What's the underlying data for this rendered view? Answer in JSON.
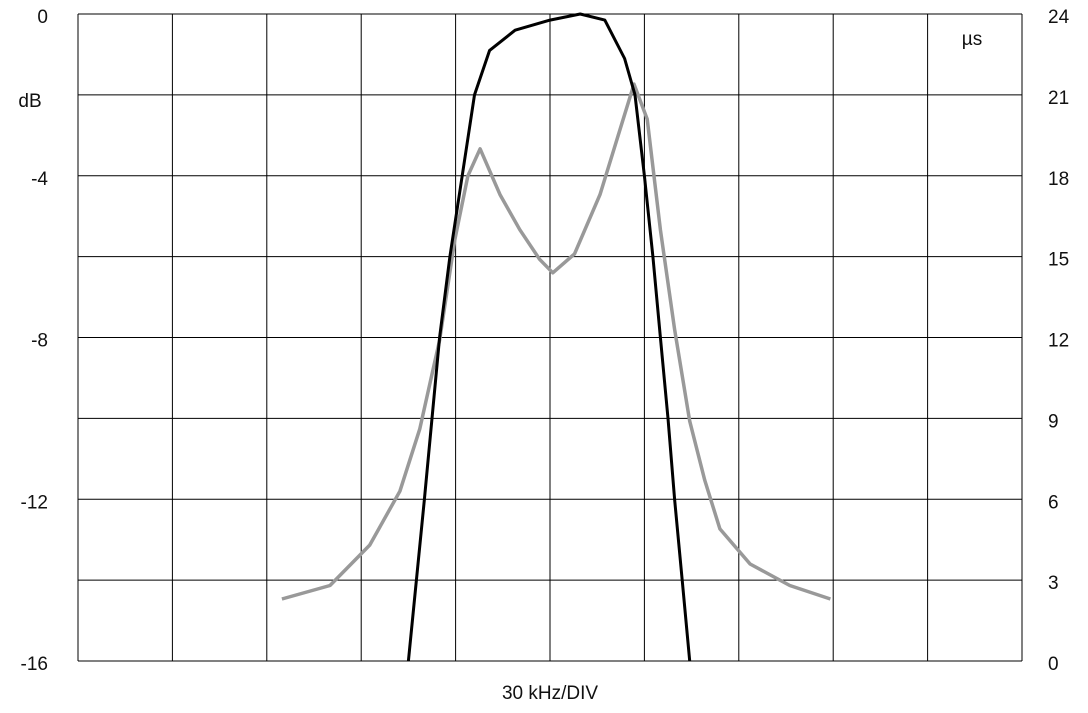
{
  "chart_data": {
    "type": "line",
    "x_label": "30 kHz/DIV",
    "y_label": "dB",
    "y2_label": "µs",
    "xlim": [
      0,
      10
    ],
    "xticks": [
      0,
      1,
      2,
      3,
      4,
      5,
      6,
      7,
      8,
      9,
      10
    ],
    "ylim": [
      -16,
      0
    ],
    "yticks": [
      0,
      -4,
      -8,
      -12,
      -16
    ],
    "y2lim": [
      0,
      24
    ],
    "y2ticks": [
      0,
      3,
      6,
      9,
      12,
      15,
      18,
      21,
      24
    ],
    "grid": true,
    "series": [
      {
        "color": "#000000",
        "axis": "y",
        "x": [
          3.5,
          3.67,
          3.83,
          3.94,
          4.07,
          4.2,
          4.36,
          4.63,
          5.0,
          5.32,
          5.58,
          5.79,
          5.9,
          6.0,
          6.09,
          6.17,
          6.25,
          6.32,
          6.4,
          6.48
        ],
        "values": [
          -16,
          -12,
          -8,
          -6,
          -4,
          -2,
          -0.9,
          -0.4,
          -0.15,
          0,
          -0.15,
          -1.1,
          -2,
          -4,
          -6,
          -8,
          -10,
          -12,
          -14,
          -16
        ]
      },
      {
        "color": "#999999",
        "axis": "y2",
        "x": [
          2.16,
          2.67,
          3.09,
          3.41,
          3.62,
          3.83,
          3.99,
          4.13,
          4.26,
          4.47,
          4.68,
          4.89,
          5.03,
          5.26,
          5.53,
          5.74,
          5.89,
          6.03,
          6.17,
          6.32,
          6.48,
          6.64,
          6.8,
          7.12,
          7.54,
          7.97
        ],
        "values": [
          2.3,
          2.8,
          4.3,
          6.3,
          8.6,
          11.9,
          15.6,
          18.0,
          19.0,
          17.3,
          16.0,
          14.9,
          14.4,
          15.1,
          17.3,
          19.7,
          21.4,
          20.1,
          16.0,
          12.3,
          8.9,
          6.7,
          4.9,
          3.6,
          2.8,
          2.3
        ]
      }
    ]
  }
}
